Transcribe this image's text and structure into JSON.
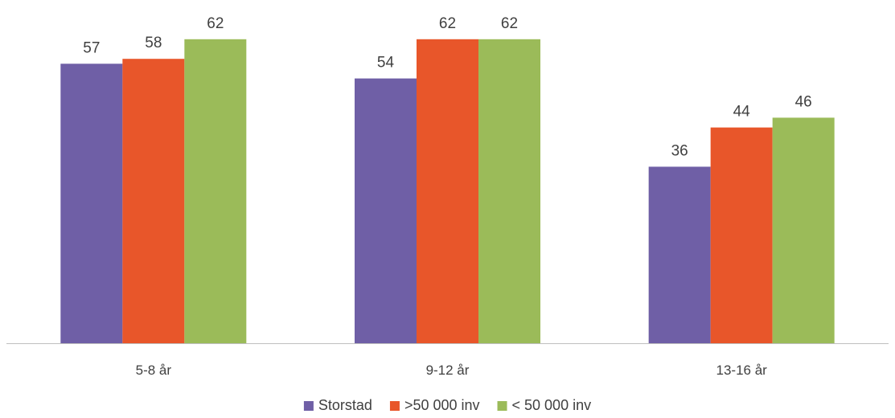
{
  "chart_data": {
    "type": "bar",
    "title": "",
    "xlabel": "",
    "ylabel": "",
    "categories": [
      "5-8 år",
      "9-12 år",
      "13-16 år"
    ],
    "series": [
      {
        "name": "Storstad",
        "color": "#6f5fa6",
        "values": [
          57,
          54,
          36
        ]
      },
      {
        "name": ">50 000 inv",
        "color": "#e8562a",
        "values": [
          58,
          62,
          44
        ]
      },
      {
        "name": "< 50 000 inv",
        "color": "#9bbb59",
        "values": [
          62,
          62,
          46
        ]
      }
    ],
    "ylim": [
      0,
      70
    ],
    "grid": false,
    "legend": "bottom",
    "axis_color": "#bfbfbf",
    "label_color": "#404040"
  }
}
